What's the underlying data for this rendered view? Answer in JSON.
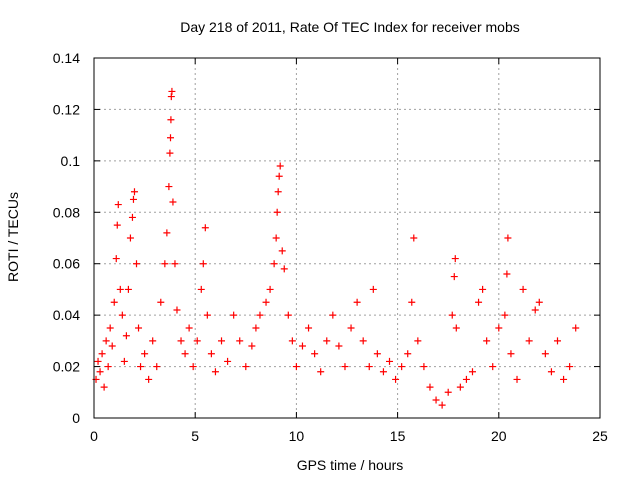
{
  "chart_data": {
    "type": "scatter",
    "title": "Day 218 of 2011, Rate Of TEC Index for receiver mobs",
    "xlabel": "GPS time / hours",
    "ylabel": "ROTI / TECUs",
    "xlim": [
      0,
      25
    ],
    "ylim": [
      0,
      0.14
    ],
    "xticks": [
      {
        "value": 0,
        "label": "0"
      },
      {
        "value": 5,
        "label": "5"
      },
      {
        "value": 10,
        "label": "10"
      },
      {
        "value": 15,
        "label": "15"
      },
      {
        "value": 20,
        "label": "20"
      },
      {
        "value": 25,
        "label": "25"
      }
    ],
    "yticks": [
      {
        "value": 0,
        "label": "0"
      },
      {
        "value": 0.02,
        "label": "0.02"
      },
      {
        "value": 0.04,
        "label": "0.04"
      },
      {
        "value": 0.06,
        "label": "0.06"
      },
      {
        "value": 0.08,
        "label": "0.08"
      },
      {
        "value": 0.1,
        "label": "0.1"
      },
      {
        "value": 0.12,
        "label": "0.12"
      },
      {
        "value": 0.14,
        "label": "0.14"
      }
    ],
    "grid": true,
    "legend": "none",
    "marker": "+",
    "color": "#ff0000",
    "series": [
      {
        "points": [
          [
            0.1,
            0.015
          ],
          [
            0.2,
            0.022
          ],
          [
            0.3,
            0.018
          ],
          [
            0.4,
            0.025
          ],
          [
            0.5,
            0.012
          ],
          [
            0.6,
            0.03
          ],
          [
            0.7,
            0.02
          ],
          [
            0.8,
            0.035
          ],
          [
            0.9,
            0.028
          ],
          [
            1.0,
            0.045
          ],
          [
            1.1,
            0.062
          ],
          [
            1.15,
            0.075
          ],
          [
            1.2,
            0.083
          ],
          [
            1.3,
            0.05
          ],
          [
            1.4,
            0.04
          ],
          [
            1.5,
            0.022
          ],
          [
            1.6,
            0.032
          ],
          [
            1.7,
            0.05
          ],
          [
            1.8,
            0.07
          ],
          [
            1.9,
            0.078
          ],
          [
            1.95,
            0.085
          ],
          [
            2.0,
            0.088
          ],
          [
            2.1,
            0.06
          ],
          [
            2.2,
            0.035
          ],
          [
            2.3,
            0.02
          ],
          [
            2.5,
            0.025
          ],
          [
            2.7,
            0.015
          ],
          [
            2.9,
            0.03
          ],
          [
            3.1,
            0.02
          ],
          [
            3.3,
            0.045
          ],
          [
            3.5,
            0.06
          ],
          [
            3.6,
            0.072
          ],
          [
            3.7,
            0.09
          ],
          [
            3.75,
            0.103
          ],
          [
            3.78,
            0.109
          ],
          [
            3.8,
            0.116
          ],
          [
            3.82,
            0.125
          ],
          [
            3.85,
            0.127
          ],
          [
            3.9,
            0.084
          ],
          [
            4.0,
            0.06
          ],
          [
            4.1,
            0.042
          ],
          [
            4.3,
            0.03
          ],
          [
            4.5,
            0.025
          ],
          [
            4.7,
            0.035
          ],
          [
            4.9,
            0.02
          ],
          [
            5.1,
            0.03
          ],
          [
            5.3,
            0.05
          ],
          [
            5.4,
            0.06
          ],
          [
            5.5,
            0.074
          ],
          [
            5.6,
            0.04
          ],
          [
            5.8,
            0.025
          ],
          [
            6.0,
            0.018
          ],
          [
            6.3,
            0.03
          ],
          [
            6.6,
            0.022
          ],
          [
            6.9,
            0.04
          ],
          [
            7.2,
            0.03
          ],
          [
            7.5,
            0.02
          ],
          [
            7.8,
            0.028
          ],
          [
            8.0,
            0.035
          ],
          [
            8.2,
            0.04
          ],
          [
            8.5,
            0.045
          ],
          [
            8.7,
            0.05
          ],
          [
            8.9,
            0.06
          ],
          [
            9.0,
            0.07
          ],
          [
            9.05,
            0.08
          ],
          [
            9.1,
            0.088
          ],
          [
            9.15,
            0.094
          ],
          [
            9.2,
            0.098
          ],
          [
            9.3,
            0.065
          ],
          [
            9.4,
            0.058
          ],
          [
            9.6,
            0.04
          ],
          [
            9.8,
            0.03
          ],
          [
            10.0,
            0.02
          ],
          [
            10.3,
            0.028
          ],
          [
            10.6,
            0.035
          ],
          [
            10.9,
            0.025
          ],
          [
            11.2,
            0.018
          ],
          [
            11.5,
            0.03
          ],
          [
            11.8,
            0.04
          ],
          [
            12.1,
            0.028
          ],
          [
            12.4,
            0.02
          ],
          [
            12.7,
            0.035
          ],
          [
            13.0,
            0.045
          ],
          [
            13.3,
            0.03
          ],
          [
            13.6,
            0.02
          ],
          [
            13.8,
            0.05
          ],
          [
            14.0,
            0.025
          ],
          [
            14.3,
            0.018
          ],
          [
            14.6,
            0.022
          ],
          [
            14.9,
            0.015
          ],
          [
            15.2,
            0.02
          ],
          [
            15.5,
            0.025
          ],
          [
            15.7,
            0.045
          ],
          [
            15.8,
            0.07
          ],
          [
            16.0,
            0.03
          ],
          [
            16.3,
            0.02
          ],
          [
            16.6,
            0.012
          ],
          [
            16.9,
            0.007
          ],
          [
            17.2,
            0.005
          ],
          [
            17.5,
            0.01
          ],
          [
            17.7,
            0.04
          ],
          [
            17.8,
            0.055
          ],
          [
            17.85,
            0.062
          ],
          [
            17.9,
            0.035
          ],
          [
            18.1,
            0.012
          ],
          [
            18.4,
            0.015
          ],
          [
            18.7,
            0.018
          ],
          [
            19.0,
            0.045
          ],
          [
            19.2,
            0.05
          ],
          [
            19.4,
            0.03
          ],
          [
            19.7,
            0.02
          ],
          [
            20.0,
            0.035
          ],
          [
            20.3,
            0.04
          ],
          [
            20.4,
            0.056
          ],
          [
            20.45,
            0.07
          ],
          [
            20.6,
            0.025
          ],
          [
            20.9,
            0.015
          ],
          [
            21.2,
            0.05
          ],
          [
            21.5,
            0.03
          ],
          [
            21.8,
            0.042
          ],
          [
            22.0,
            0.045
          ],
          [
            22.3,
            0.025
          ],
          [
            22.6,
            0.018
          ],
          [
            22.9,
            0.03
          ],
          [
            23.2,
            0.015
          ],
          [
            23.5,
            0.02
          ],
          [
            23.8,
            0.035
          ]
        ]
      }
    ]
  }
}
